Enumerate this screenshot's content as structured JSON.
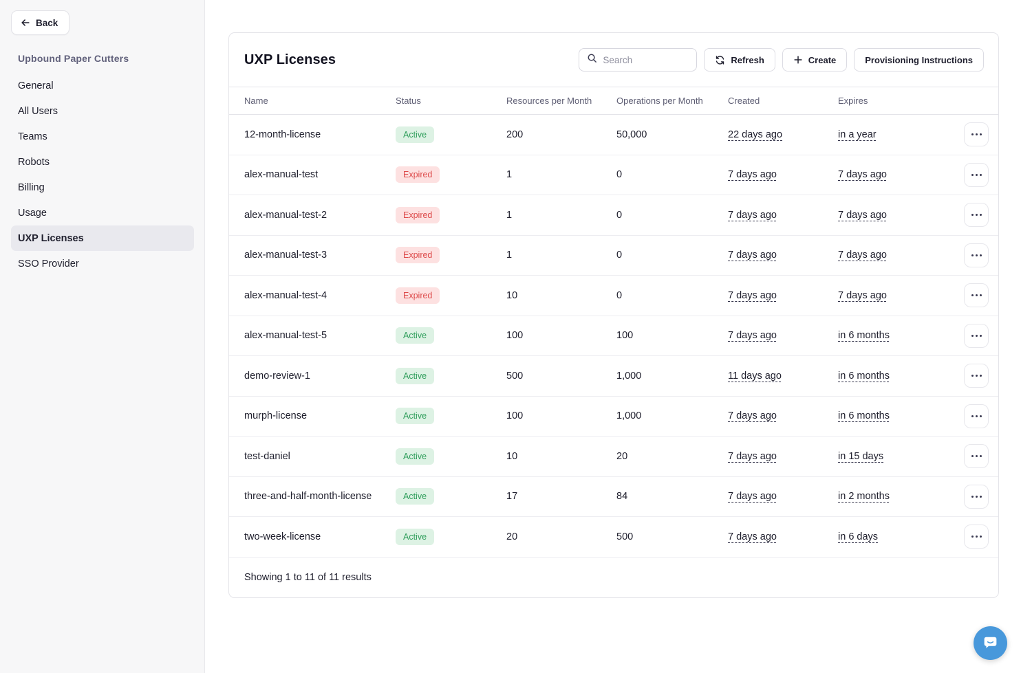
{
  "sidebar": {
    "back_label": "Back",
    "org_name": "Upbound Paper Cutters",
    "items": [
      {
        "label": "General",
        "active": false
      },
      {
        "label": "All Users",
        "active": false
      },
      {
        "label": "Teams",
        "active": false
      },
      {
        "label": "Robots",
        "active": false
      },
      {
        "label": "Billing",
        "active": false
      },
      {
        "label": "Usage",
        "active": false
      },
      {
        "label": "UXP Licenses",
        "active": true
      },
      {
        "label": "SSO Provider",
        "active": false
      }
    ]
  },
  "header": {
    "title": "UXP Licenses",
    "search_placeholder": "Search",
    "refresh_label": "Refresh",
    "create_label": "Create",
    "provisioning_label": "Provisioning Instructions"
  },
  "table": {
    "columns": [
      "Name",
      "Status",
      "Resources per Month",
      "Operations per Month",
      "Created",
      "Expires"
    ],
    "rows": [
      {
        "name": "12-month-license",
        "status": "Active",
        "resources": "200",
        "operations": "50,000",
        "created": "22 days ago",
        "expires": "in a year"
      },
      {
        "name": "alex-manual-test",
        "status": "Expired",
        "resources": "1",
        "operations": "0",
        "created": "7 days ago",
        "expires": "7 days ago"
      },
      {
        "name": "alex-manual-test-2",
        "status": "Expired",
        "resources": "1",
        "operations": "0",
        "created": "7 days ago",
        "expires": "7 days ago"
      },
      {
        "name": "alex-manual-test-3",
        "status": "Expired",
        "resources": "1",
        "operations": "0",
        "created": "7 days ago",
        "expires": "7 days ago"
      },
      {
        "name": "alex-manual-test-4",
        "status": "Expired",
        "resources": "10",
        "operations": "0",
        "created": "7 days ago",
        "expires": "7 days ago"
      },
      {
        "name": "alex-manual-test-5",
        "status": "Active",
        "resources": "100",
        "operations": "100",
        "created": "7 days ago",
        "expires": "in 6 months"
      },
      {
        "name": "demo-review-1",
        "status": "Active",
        "resources": "500",
        "operations": "1,000",
        "created": "11 days ago",
        "expires": "in 6 months"
      },
      {
        "name": "murph-license",
        "status": "Active",
        "resources": "100",
        "operations": "1,000",
        "created": "7 days ago",
        "expires": "in 6 months"
      },
      {
        "name": "test-daniel",
        "status": "Active",
        "resources": "10",
        "operations": "20",
        "created": "7 days ago",
        "expires": "in 15 days"
      },
      {
        "name": "three-and-half-month-license",
        "status": "Active",
        "resources": "17",
        "operations": "84",
        "created": "7 days ago",
        "expires": "in 2 months"
      },
      {
        "name": "two-week-license",
        "status": "Active",
        "resources": "20",
        "operations": "500",
        "created": "7 days ago",
        "expires": "in 6 days"
      }
    ],
    "footer": "Showing 1 to 11 of 11 results"
  },
  "colors": {
    "active_bg": "#ddf2e4",
    "active_text": "#2f9e5b",
    "expired_bg": "#fde1e1",
    "expired_text": "#dd4a4a",
    "chat_blue": "#4898db"
  }
}
